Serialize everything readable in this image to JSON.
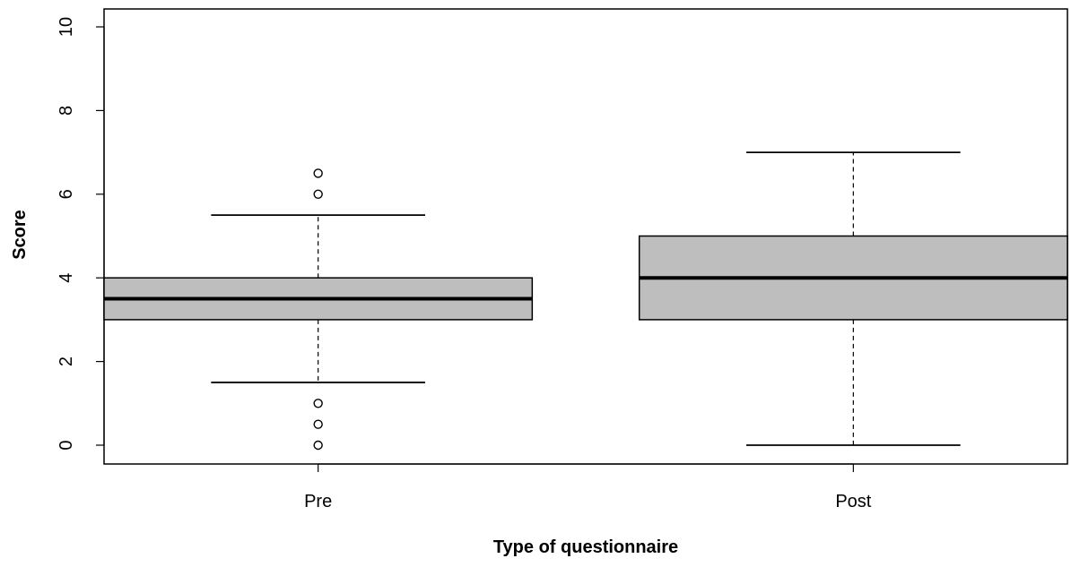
{
  "chart_data": {
    "type": "boxplot",
    "title": "",
    "xlabel": "Type of questionnaire",
    "ylabel": "Score",
    "ylim": [
      0,
      10
    ],
    "yticks": [
      0,
      2,
      4,
      6,
      8,
      10
    ],
    "grid": false,
    "categories": [
      "Pre",
      "Post"
    ],
    "boxes": [
      {
        "category": "Pre",
        "whisker_low": 1.5,
        "q1": 3,
        "median": 3.5,
        "q3": 4,
        "whisker_high": 5.5,
        "outliers": [
          0,
          0.5,
          1,
          6,
          6.5
        ]
      },
      {
        "category": "Post",
        "whisker_low": 0,
        "q1": 3,
        "median": 4,
        "q3": 5,
        "whisker_high": 7,
        "outliers": []
      }
    ],
    "colors": {
      "box_fill": "#bebebe",
      "stroke": "#000000"
    }
  }
}
